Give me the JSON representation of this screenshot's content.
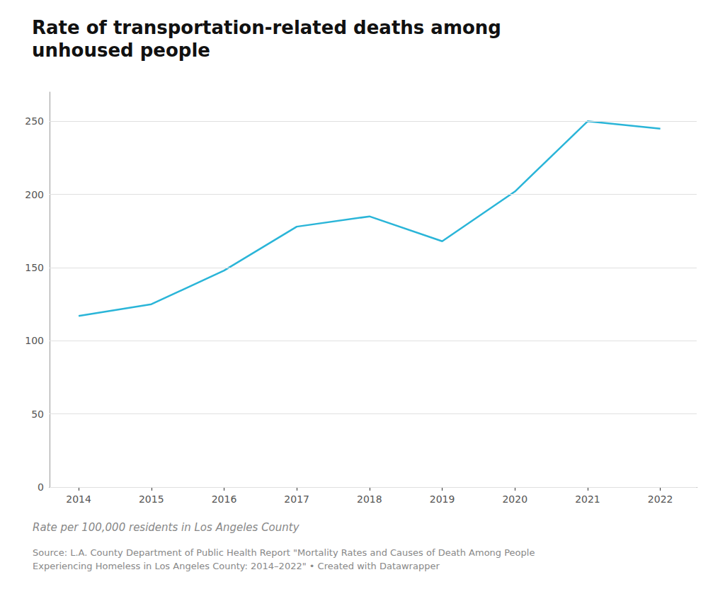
{
  "chart_data": {
    "type": "line",
    "title": "Rate of transportation-related deaths among\nunhoused people",
    "annotations": [
      "Rate per 100,000 residents in Los Angeles County",
      "Source: L.A. County Department of Public Health Report \"Mortality Rates and Causes of Death Among People\nExperiencing Homeless in Los Angeles County: 2014–2022\" • Created with Datawrapper"
    ],
    "x": [
      2014,
      2015,
      2016,
      2017,
      2018,
      2019,
      2020,
      2021,
      2022
    ],
    "values": [
      117,
      125,
      148,
      178,
      185,
      168,
      202,
      250,
      245
    ],
    "color": "#2ab5d8",
    "xlim": [
      2013.6,
      2022.5
    ],
    "xticks": [
      2014,
      2015,
      2016,
      2017,
      2018,
      2019,
      2020,
      2021,
      2022
    ],
    "ylim": [
      0,
      270
    ],
    "yticks": [
      0,
      50,
      100,
      150,
      200,
      250
    ],
    "grid": true
  }
}
